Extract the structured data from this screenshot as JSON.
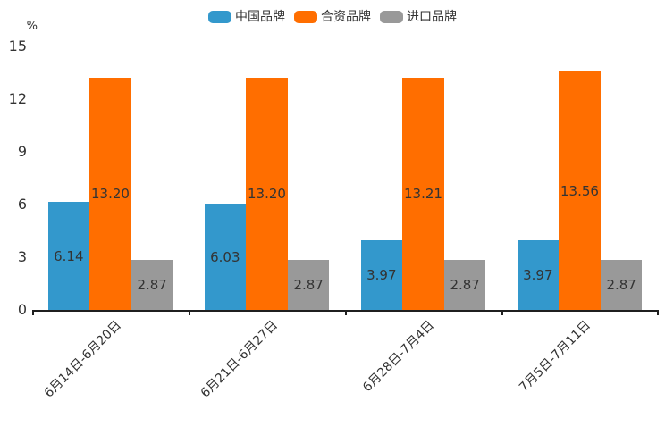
{
  "chart_data": {
    "type": "bar",
    "title": "",
    "xlabel": "",
    "ylabel": "%",
    "categories": [
      "6月14日-6月20日",
      "6月21日-6月27日",
      "6月28日-7月4日",
      "7月5日-7月11日"
    ],
    "series": [
      {
        "name": "中国品牌",
        "color": "#3398cc",
        "values": [
          6.14,
          6.03,
          3.97,
          3.97
        ]
      },
      {
        "name": "合资品牌",
        "color": "#ff6e00",
        "values": [
          13.2,
          13.2,
          13.21,
          13.56
        ]
      },
      {
        "name": "进口品牌",
        "color": "#999999",
        "values": [
          2.87,
          2.87,
          2.87,
          2.87
        ]
      }
    ],
    "ylim": [
      0,
      15
    ],
    "yticks": [
      0,
      3,
      6,
      9,
      12,
      15
    ],
    "legend_position": "top",
    "legend_labels": [
      "中国品牌",
      "合资品牌",
      "进口品牌"
    ],
    "grid": false,
    "value_labels": true,
    "value_label_decimals": 2,
    "x_label_rotation_deg": 45,
    "axis_color": "#1f1f1f",
    "text_color": "#333333",
    "background_color": "#ffffff"
  }
}
